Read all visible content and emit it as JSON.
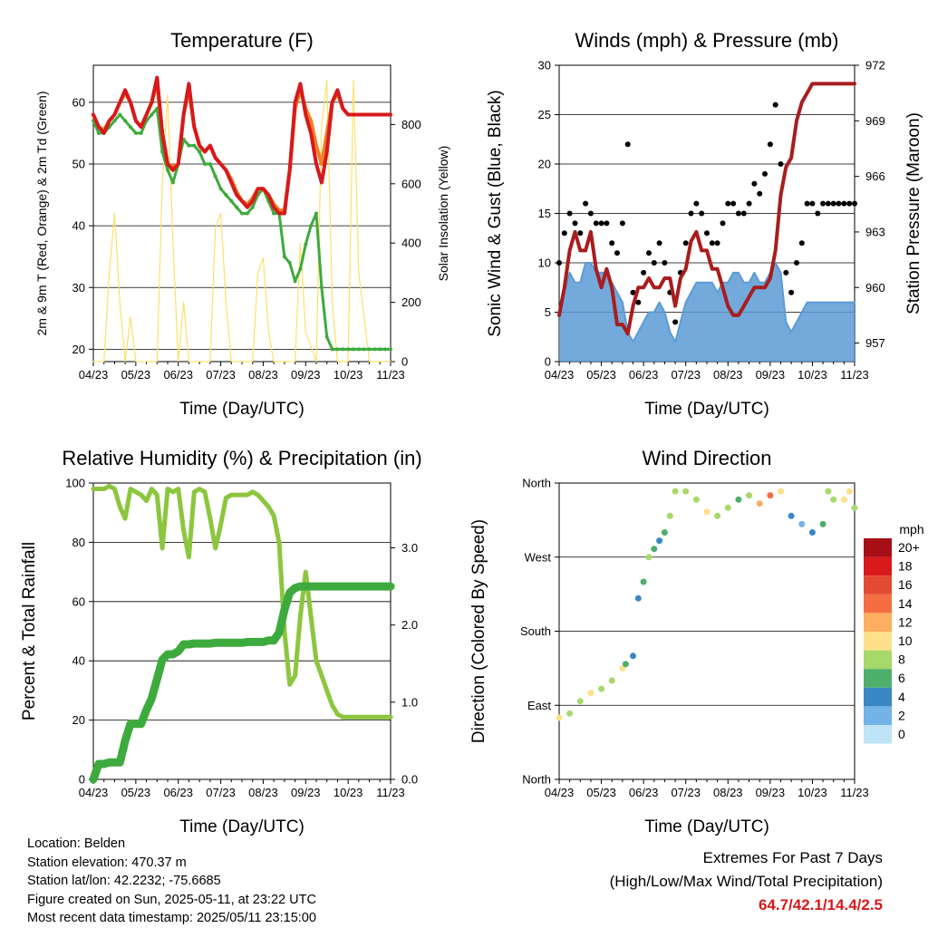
{
  "x_ticks": [
    "04/23",
    "05/23",
    "06/23",
    "07/23",
    "08/23",
    "09/23",
    "10/23",
    "11/23"
  ],
  "x_axis_title": "Time (Day/UTC)",
  "colors": {
    "temp_2m": "#d7191c",
    "temp_9m": "#f57f20",
    "dewpoint": "#3daa3d",
    "solar": "#fde06a",
    "wind": "#5b9bd5",
    "gust": "#000000",
    "pressure": "#a81d1d",
    "rh": "#8cc63f",
    "precip": "#3daa3d"
  },
  "wind_speed_legend": {
    "unit": "mph",
    "labels": [
      "20+",
      "18",
      "16",
      "14",
      "12",
      "10",
      "8",
      "6",
      "4",
      "2",
      "0"
    ],
    "colors": [
      "#a50f15",
      "#d7191c",
      "#e34a33",
      "#f46d43",
      "#fdae61",
      "#fee08b",
      "#a6d96a",
      "#4daf6a",
      "#3b87c3",
      "#74b3e8",
      "#bfe3f7"
    ]
  },
  "chart_data": [
    {
      "id": "temperature",
      "type": "line",
      "title": "Temperature (F)",
      "xlabel": "Time (Day/UTC)",
      "ylabel": "2m & 9m T (Red, Orange) & 2m Td (Green)",
      "y2label": "Solar Insolation (Yellow)",
      "x": [
        0,
        0.5,
        1,
        1.5,
        2,
        2.5,
        3,
        3.5,
        4,
        4.5,
        5,
        5.5,
        6,
        6.5,
        7,
        7.5,
        8,
        8.5,
        9,
        9.5,
        10,
        10.5,
        11,
        11.5,
        12,
        12.5,
        13,
        13.5,
        14,
        14.5,
        15,
        15.5,
        16,
        16.5,
        17,
        17.5,
        18,
        18.5,
        19,
        19.5,
        20,
        20.5,
        21,
        21.5,
        22,
        22.5,
        23,
        23.5,
        24,
        24.5,
        25,
        25.5,
        26,
        26.5,
        27,
        27.5,
        28
      ],
      "ylim": [
        18,
        66
      ],
      "yticks": [
        20,
        30,
        40,
        50,
        60
      ],
      "y2lim": [
        0,
        1000
      ],
      "y2ticks": [
        0,
        200,
        400,
        600,
        800
      ],
      "series": [
        {
          "name": "2m T",
          "axis": "left",
          "values": [
            58,
            56,
            55,
            57,
            58,
            60,
            62,
            60,
            57,
            56,
            58,
            60,
            64,
            55,
            50,
            49,
            50,
            58,
            63,
            56,
            53,
            52,
            53,
            51,
            50,
            49,
            47,
            45,
            44,
            43,
            44,
            46,
            46,
            45,
            43,
            42,
            42,
            49,
            60,
            63,
            58,
            55,
            50,
            47,
            52,
            60,
            62,
            59,
            58,
            58,
            58,
            58,
            58,
            58,
            58,
            58,
            58
          ]
        },
        {
          "name": "9m T",
          "axis": "left",
          "values": [
            58,
            56,
            55.5,
            57,
            58,
            60,
            61.5,
            60,
            57,
            56,
            58,
            60,
            63,
            55,
            50,
            49.5,
            50,
            58,
            62,
            56,
            53,
            52,
            53,
            51,
            50,
            49,
            47.5,
            45.5,
            44,
            43.5,
            44.5,
            46,
            46,
            45,
            43.5,
            42.5,
            42.5,
            49,
            59,
            62,
            59,
            57,
            53,
            50,
            55,
            60,
            61.5,
            59,
            58,
            58,
            58,
            58,
            58,
            58,
            58,
            58,
            58
          ]
        },
        {
          "name": "2m Td",
          "axis": "left",
          "values": [
            57,
            55,
            55,
            56,
            57,
            58,
            57,
            56,
            55,
            55,
            57,
            58,
            59,
            52,
            49,
            47,
            50,
            54,
            53,
            53,
            52,
            50,
            50,
            48,
            46,
            45,
            44,
            43,
            42,
            42,
            43,
            45,
            46,
            44,
            42,
            42,
            35,
            34,
            31,
            33,
            37,
            40,
            42,
            30,
            22,
            20,
            20,
            20,
            20,
            20,
            20,
            20,
            20,
            20,
            20,
            20,
            20
          ]
        },
        {
          "name": "Solar Insolation",
          "axis": "right",
          "x": [
            0,
            1,
            1.5,
            2,
            2.5,
            3,
            3.5,
            4,
            5,
            6,
            6.5,
            7,
            7.5,
            8,
            8.5,
            9,
            10,
            11,
            11.5,
            12,
            12.5,
            13,
            14,
            15,
            15.5,
            16,
            16.5,
            17,
            18,
            19,
            19.5,
            20,
            21,
            21.5,
            22,
            22.5,
            23,
            24,
            24.5,
            25,
            26,
            27,
            28
          ],
          "values": [
            0,
            0,
            300,
            500,
            200,
            0,
            150,
            0,
            0,
            0,
            600,
            900,
            400,
            0,
            200,
            0,
            0,
            0,
            450,
            500,
            200,
            0,
            0,
            0,
            300,
            350,
            100,
            0,
            0,
            0,
            400,
            100,
            0,
            800,
            950,
            200,
            0,
            0,
            950,
            300,
            0,
            0,
            0
          ]
        }
      ]
    },
    {
      "id": "winds",
      "type": "line",
      "title": "Winds (mph) & Pressure (mb)",
      "xlabel": "Time (Day/UTC)",
      "ylabel": "Sonic Wind & Gust (Blue, Black)",
      "y2label": "Station Pressure (Maroon)",
      "x": [
        0,
        0.5,
        1,
        1.5,
        2,
        2.5,
        3,
        3.5,
        4,
        4.5,
        5,
        5.5,
        6,
        6.5,
        7,
        7.5,
        8,
        8.5,
        9,
        9.5,
        10,
        10.5,
        11,
        11.5,
        12,
        12.5,
        13,
        13.5,
        14,
        14.5,
        15,
        15.5,
        16,
        16.5,
        17,
        17.5,
        18,
        18.5,
        19,
        19.5,
        20,
        20.5,
        21,
        21.5,
        22,
        22.5,
        23,
        23.5,
        24,
        24.5,
        25,
        25.5,
        26,
        26.5,
        27,
        27.5,
        28
      ],
      "ylim": [
        0,
        30
      ],
      "yticks": [
        0,
        5,
        10,
        15,
        20,
        25,
        30
      ],
      "y2lim": [
        956,
        972
      ],
      "y2ticks": [
        957,
        960,
        963,
        966,
        969,
        972
      ],
      "series": [
        {
          "name": "Sonic Wind",
          "axis": "left",
          "values": [
            5,
            7,
            9,
            8,
            8,
            10,
            10,
            9,
            9,
            9,
            8,
            7,
            6,
            3,
            2,
            3,
            4,
            5,
            5,
            6,
            5,
            3,
            2,
            4,
            6,
            7,
            8,
            8,
            8,
            8,
            7,
            8,
            8,
            9,
            9,
            8,
            8,
            9,
            8,
            8,
            9,
            10,
            9,
            4,
            3,
            4,
            5,
            6,
            6,
            6,
            6,
            6,
            6,
            6,
            6,
            6,
            6
          ]
        },
        {
          "name": "Gust",
          "axis": "left",
          "values": [
            10,
            13,
            15,
            14,
            13,
            16,
            15,
            14,
            14,
            14,
            12,
            11,
            14,
            22,
            7,
            6,
            9,
            11,
            10,
            12,
            10,
            7,
            4,
            9,
            12,
            15,
            16,
            15,
            13,
            12,
            12,
            14,
            16,
            16,
            15,
            15,
            16,
            18,
            17,
            19,
            22,
            26,
            20,
            9,
            7,
            10,
            12,
            16,
            16,
            15,
            16,
            16,
            16,
            16,
            16,
            16,
            16
          ]
        },
        {
          "name": "Station Pressure",
          "axis": "right",
          "values": [
            958.5,
            960,
            962,
            963,
            962,
            962,
            963,
            961,
            960,
            961,
            960,
            958,
            958,
            957.5,
            959,
            960,
            960,
            960.5,
            960,
            960,
            960.5,
            960.5,
            959,
            960.5,
            961,
            962.5,
            963,
            962,
            962,
            961,
            961,
            960,
            959,
            958.5,
            958.5,
            959,
            959.5,
            960,
            960,
            960,
            960.5,
            962,
            965,
            966.5,
            967,
            969,
            970,
            970.5,
            971,
            971,
            971,
            971,
            971,
            971,
            971,
            971,
            971
          ]
        }
      ]
    },
    {
      "id": "humidity",
      "type": "line",
      "title": "Relative Humidity (%) & Precipitation (in)",
      "xlabel": "Time (Day/UTC)",
      "ylabel": "Percent & Total Rainfall",
      "x": [
        0,
        0.5,
        1,
        1.5,
        2,
        2.5,
        3,
        3.5,
        4,
        4.5,
        5,
        5.5,
        6,
        6.5,
        7,
        7.5,
        8,
        8.5,
        9,
        9.5,
        10,
        10.5,
        11,
        11.5,
        12,
        12.5,
        13,
        13.5,
        14,
        14.5,
        15,
        15.5,
        16,
        16.5,
        17,
        17.5,
        18,
        18.5,
        19,
        19.5,
        20,
        20.5,
        21,
        21.5,
        22,
        22.5,
        23,
        23.5,
        24,
        24.5,
        25,
        25.5,
        26,
        26.5,
        27,
        27.5,
        28
      ],
      "ylim": [
        0,
        100
      ],
      "yticks": [
        0,
        20,
        40,
        60,
        80,
        100
      ],
      "y2lim": [
        0,
        3.84
      ],
      "y2ticks": [
        0.0,
        1.0,
        2.0,
        3.0
      ],
      "series": [
        {
          "name": "Relative Humidity",
          "axis": "left",
          "values": [
            98,
            98,
            98,
            99,
            98,
            92,
            88,
            98,
            97,
            96,
            94,
            98,
            96,
            78,
            98,
            97,
            98,
            84,
            75,
            97,
            98,
            97,
            88,
            78,
            86,
            95,
            96,
            96,
            96,
            96,
            97,
            96,
            94,
            92,
            89,
            80,
            50,
            32,
            35,
            55,
            70,
            55,
            40,
            35,
            30,
            25,
            22,
            21,
            21,
            21,
            21,
            21,
            21,
            21,
            21,
            21,
            21
          ]
        },
        {
          "name": "Total Precipitation",
          "axis": "right",
          "values": [
            0,
            0.2,
            0.2,
            0.22,
            0.22,
            0.22,
            0.5,
            0.72,
            0.72,
            0.72,
            0.9,
            1.05,
            1.3,
            1.55,
            1.62,
            1.62,
            1.66,
            1.75,
            1.75,
            1.76,
            1.76,
            1.76,
            1.76,
            1.77,
            1.77,
            1.77,
            1.77,
            1.77,
            1.77,
            1.78,
            1.78,
            1.78,
            1.78,
            1.8,
            1.8,
            1.9,
            2.2,
            2.42,
            2.48,
            2.5,
            2.5,
            2.5,
            2.5,
            2.5,
            2.5,
            2.5,
            2.5,
            2.5,
            2.5,
            2.5,
            2.5,
            2.5,
            2.5,
            2.5,
            2.5,
            2.5,
            2.5
          ]
        }
      ]
    },
    {
      "id": "direction",
      "type": "scatter",
      "title": "Wind Direction",
      "xlabel": "Time (Day/UTC)",
      "ylabel": "Direction (Colored By Speed)",
      "y_categories": [
        "North",
        "East",
        "South",
        "West",
        "North"
      ],
      "ylim": [
        0,
        360
      ],
      "x": [
        0,
        1,
        2,
        3,
        4,
        5,
        6,
        6.3,
        7,
        7.5,
        8,
        8.5,
        9,
        9.5,
        10,
        10.5,
        11,
        12,
        13,
        14,
        15,
        16,
        17,
        18,
        19,
        20,
        21,
        22,
        23,
        24,
        25,
        25.5,
        26,
        27,
        27.5,
        28
      ],
      "values": [
        75,
        80,
        95,
        105,
        110,
        120,
        135,
        140,
        150,
        220,
        240,
        270,
        280,
        290,
        300,
        320,
        350,
        350,
        340,
        325,
        320,
        330,
        340,
        345,
        335,
        345,
        350,
        320,
        310,
        300,
        310,
        350,
        340,
        340,
        350,
        330
      ],
      "speeds": [
        9,
        8,
        8,
        10,
        8,
        8,
        9,
        5,
        4,
        3,
        6,
        7,
        5,
        4,
        6,
        8,
        7,
        7,
        8,
        9,
        7,
        8,
        6,
        7,
        12,
        14,
        10,
        4,
        2,
        3,
        6,
        7,
        8,
        9,
        9,
        7
      ]
    }
  ],
  "info": {
    "location": "Location: Belden",
    "elevation": "Station elevation: 470.37 m",
    "latlon": "Station lat/lon: 42.2232; -75.6685",
    "created": "Figure created on Sun, 2025-05-11, at 23:22 UTC",
    "timestamp": "Most recent data timestamp: 2025/05/11 23:15:00"
  },
  "extremes": {
    "title": "Extremes For Past 7 Days",
    "subtitle": "(High/Low/Max Wind/Total Precipitation)",
    "values": "64.7/42.1/14.4/2.5"
  }
}
